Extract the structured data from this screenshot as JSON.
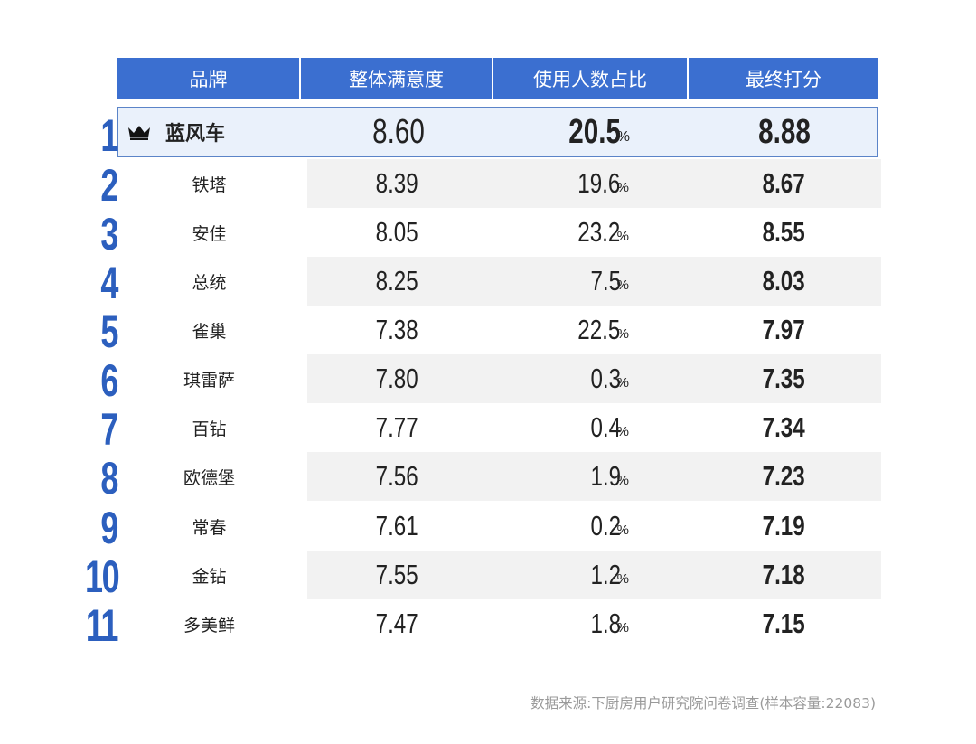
{
  "chart_data": {
    "type": "table",
    "columns": [
      "品牌",
      "整体满意度",
      "使用人数占比",
      "最终打分"
    ],
    "rows": [
      {
        "rank": "1",
        "brand": "蓝风车",
        "satisfaction": "8.60",
        "share": "20.5",
        "score": "8.88"
      },
      {
        "rank": "2",
        "brand": "铁塔",
        "satisfaction": "8.39",
        "share": "19.6",
        "score": "8.67"
      },
      {
        "rank": "3",
        "brand": "安佳",
        "satisfaction": "8.05",
        "share": "23.2",
        "score": "8.55"
      },
      {
        "rank": "4",
        "brand": "总统",
        "satisfaction": "8.25",
        "share": "7.5",
        "score": "8.03"
      },
      {
        "rank": "5",
        "brand": "雀巢",
        "satisfaction": "7.38",
        "share": "22.5",
        "score": "7.97"
      },
      {
        "rank": "6",
        "brand": "琪雷萨",
        "satisfaction": "7.80",
        "share": "0.3",
        "score": "7.35"
      },
      {
        "rank": "7",
        "brand": "百钻",
        "satisfaction": "7.77",
        "share": "0.4",
        "score": "7.34"
      },
      {
        "rank": "8",
        "brand": "欧德堡",
        "satisfaction": "7.56",
        "share": "1.9",
        "score": "7.23"
      },
      {
        "rank": "9",
        "brand": "常春",
        "satisfaction": "7.61",
        "share": "0.2",
        "score": "7.19"
      },
      {
        "rank": "10",
        "brand": "金钻",
        "satisfaction": "7.55",
        "share": "1.2",
        "score": "7.18"
      },
      {
        "rank": "11",
        "brand": "多美鲜",
        "satisfaction": "7.47",
        "share": "1.8",
        "score": "7.15"
      }
    ],
    "percent_symbol": "%",
    "highlight_row": 0,
    "highlight_icon": "crown-icon"
  },
  "colors": {
    "header": "#3b6fd0",
    "rank": "#2c5fbe",
    "highlight_bg": "#eaf1fb",
    "stripe": "#f2f2f2"
  },
  "source": "数据来源:下厨房用户研究院问卷调查(样本容量:22083)"
}
